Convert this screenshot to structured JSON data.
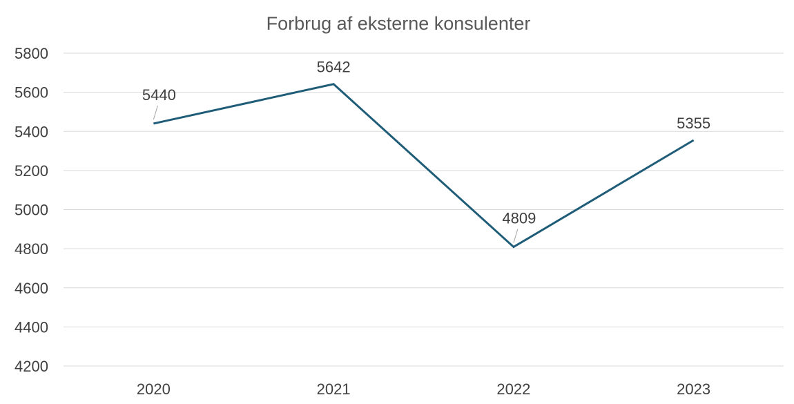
{
  "chart_data": {
    "type": "line",
    "title": "Forbrug af eksterne konsulenter",
    "xlabel": "",
    "ylabel": "",
    "categories": [
      "2020",
      "2021",
      "2022",
      "2023"
    ],
    "series": [
      {
        "values": [
          5440,
          5642,
          4809,
          5355
        ],
        "color": "#1f5c78"
      }
    ],
    "data_labels": [
      "5440",
      "5642",
      "4809",
      "5355"
    ],
    "ylim": [
      4200,
      5800
    ],
    "yticks": [
      4200,
      4400,
      4600,
      4800,
      5000,
      5200,
      5400,
      5600,
      5800
    ],
    "grid": true,
    "legend": "none"
  }
}
